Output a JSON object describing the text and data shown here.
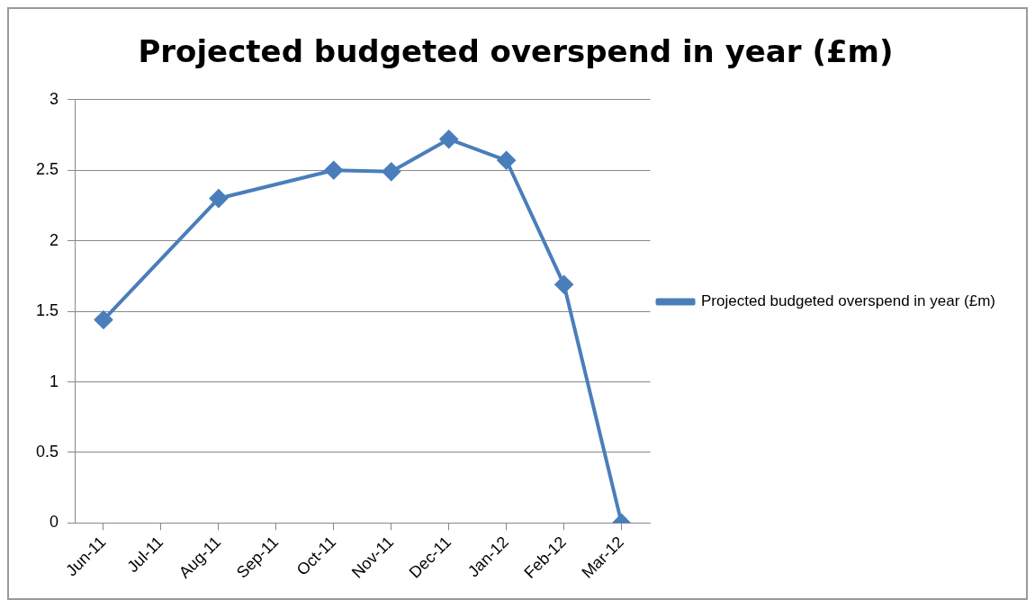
{
  "chart_data": {
    "type": "line",
    "title": "Projected budgeted overspend in year (£m)",
    "categories": [
      "Jun-11",
      "Jul-11",
      "Aug-11",
      "Sep-11",
      "Oct-11",
      "Nov-11",
      "Dec-11",
      "Jan-12",
      "Feb-12",
      "Mar-12"
    ],
    "series": [
      {
        "name": "Projected budgeted overspend in year (£m)",
        "color": "#4a7ebb",
        "values": [
          1.44,
          null,
          2.3,
          null,
          2.5,
          2.49,
          2.72,
          2.57,
          1.69,
          0
        ]
      }
    ],
    "ylim": [
      0,
      3
    ],
    "yticks": [
      0,
      0.5,
      1,
      1.5,
      2,
      2.5,
      3
    ],
    "grid": "y",
    "legend": "right",
    "marker": "diamond",
    "line_style": "solid"
  }
}
